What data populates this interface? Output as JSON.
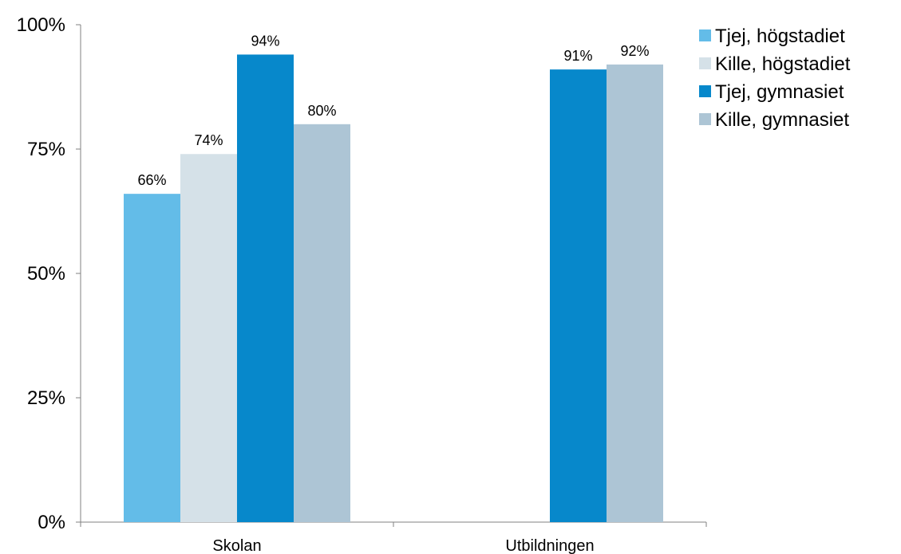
{
  "chart_data": {
    "type": "bar",
    "categories": [
      "Skolan",
      "Utbildningen"
    ],
    "series": [
      {
        "name": "Tjej, högstadiet",
        "color": "#63bce8",
        "values": [
          66,
          null
        ],
        "labels": [
          "66%",
          ""
        ]
      },
      {
        "name": "Kille, högstadiet",
        "color": "#d5e1e8",
        "values": [
          74,
          null
        ],
        "labels": [
          "74%",
          ""
        ]
      },
      {
        "name": "Tjej, gymnasiet",
        "color": "#0788cb",
        "values": [
          94,
          91
        ],
        "labels": [
          "94%",
          "91%"
        ]
      },
      {
        "name": "Kille, gymnasiet",
        "color": "#adc5d5",
        "values": [
          80,
          92
        ],
        "labels": [
          "80%",
          "92%"
        ]
      }
    ],
    "ylim": [
      0,
      100
    ],
    "yticks": [
      0,
      25,
      50,
      75,
      100
    ],
    "ytick_labels": [
      "0%",
      "25%",
      "50%",
      "75%",
      "100%"
    ],
    "grid": false,
    "legend_position": "top-right",
    "title": "",
    "xlabel": "",
    "ylabel": ""
  }
}
